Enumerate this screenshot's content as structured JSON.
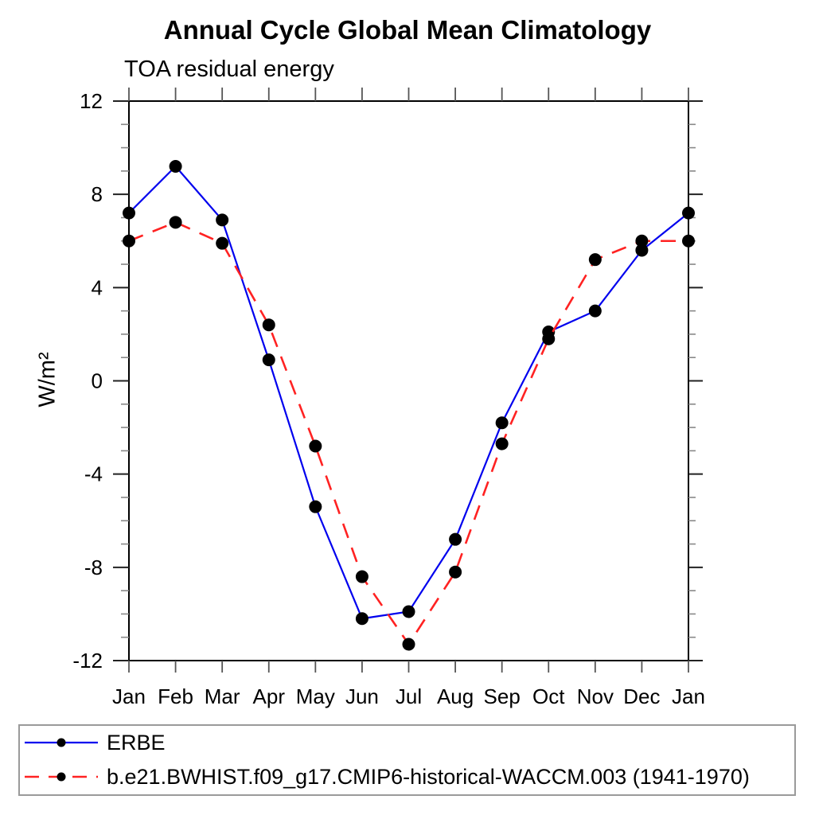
{
  "chart_data": {
    "type": "line",
    "title": "Annual Cycle Global Mean Climatology",
    "subtitle": "TOA residual energy",
    "ylabel": "W/m²",
    "xlabel": "",
    "x_categories": [
      "Jan",
      "Feb",
      "Mar",
      "Apr",
      "May",
      "Jun",
      "Jul",
      "Aug",
      "Sep",
      "Oct",
      "Nov",
      "Dec",
      "Jan"
    ],
    "ylim": [
      -12,
      12
    ],
    "y_major_ticks": [
      12,
      8,
      4,
      0,
      -4,
      -8,
      -12
    ],
    "y_minor_tick_step": 1,
    "grid": false,
    "legend_position": "bottom-left-box",
    "series": [
      {
        "name": "ERBE",
        "color": "#0000ee",
        "line_style": "solid",
        "marker": "circle",
        "marker_color": "#000000",
        "values": [
          7.2,
          9.2,
          6.9,
          0.9,
          -5.4,
          -10.2,
          -9.9,
          -6.8,
          -1.8,
          2.1,
          3.0,
          5.6,
          7.2
        ]
      },
      {
        "name": "b.e21.BWHIST.f09_g17.CMIP6-historical-WACCM.003 (1941-1970)",
        "color": "#ff2222",
        "line_style": "dashed",
        "marker": "circle",
        "marker_color": "#000000",
        "values": [
          6.0,
          6.8,
          5.9,
          2.4,
          -2.8,
          -8.4,
          -11.3,
          -8.2,
          -2.7,
          1.8,
          5.2,
          6.0,
          6.0
        ]
      }
    ]
  }
}
